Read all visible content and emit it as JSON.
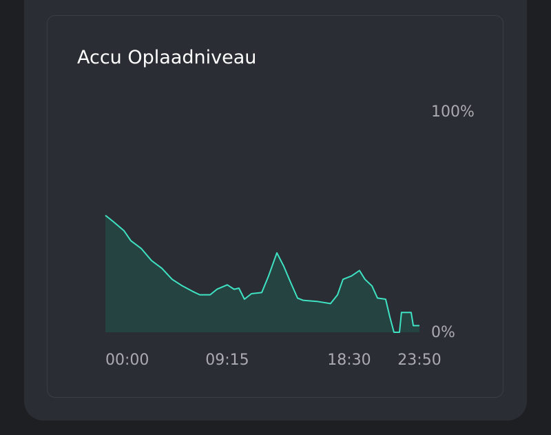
{
  "chart_data": {
    "type": "line",
    "title": "Accu Oplaadniveau",
    "x": [
      0,
      38,
      85,
      116,
      163,
      210,
      257,
      304,
      351,
      398,
      430,
      477,
      508,
      555,
      586,
      608,
      633,
      665,
      712,
      743,
      781,
      812,
      844,
      875,
      900,
      963,
      1025,
      1057,
      1082,
      1120,
      1157,
      1182,
      1214,
      1239,
      1276,
      1295,
      1314,
      1339,
      1348,
      1392,
      1402,
      1430
    ],
    "values": [
      53,
      50,
      46,
      41.5,
      38,
      32.5,
      29,
      24,
      21,
      18.5,
      17,
      17,
      19.5,
      21.5,
      19.5,
      20,
      15,
      17.5,
      18,
      25.5,
      36,
      30,
      22.5,
      15.5,
      14.5,
      14,
      13,
      17,
      24,
      25.5,
      28,
      24,
      21,
      15.5,
      15,
      7,
      0,
      0,
      9,
      9,
      3,
      3
    ],
    "color": "#3fe3c4",
    "fill": "#244341",
    "xlim": [
      0,
      1430
    ],
    "xticks": [
      {
        "value": 0,
        "label": "00:00"
      },
      {
        "value": 555,
        "label": "09:15"
      },
      {
        "value": 1110,
        "label": "18:30"
      },
      {
        "value": 1430,
        "label": "23:50"
      }
    ],
    "ylim": [
      0,
      100
    ],
    "yticks": [
      {
        "value": 0,
        "label": "0%"
      },
      {
        "value": 100,
        "label": "100%"
      }
    ]
  }
}
